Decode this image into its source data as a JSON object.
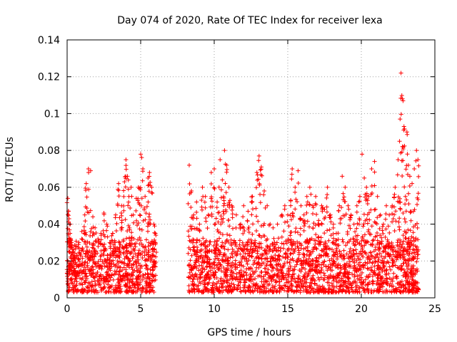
{
  "chart_data": {
    "type": "scatter",
    "title": "Day 074 of 2020, Rate Of TEC Index for receiver lexa",
    "xlabel": "GPS time / hours",
    "ylabel": "ROTI / TECUs",
    "xlim": [
      0,
      25
    ],
    "ylim": [
      0,
      0.14
    ],
    "x_ticks": [
      "0",
      "5",
      "10",
      "15",
      "20",
      "25"
    ],
    "x_tick_values": [
      0,
      5,
      10,
      15,
      20,
      25
    ],
    "y_ticks": [
      "0",
      "0.02",
      "0.04",
      "0.06",
      "0.08",
      "0.1",
      "0.12",
      "0.14"
    ],
    "y_tick_values": [
      0,
      0.02,
      0.04,
      0.06,
      0.08,
      0.1,
      0.12,
      0.14
    ],
    "grid": true,
    "marker": "plus",
    "color": "#ff0000",
    "series": [
      {
        "x": [
          0.05,
          0.1,
          0.15,
          0.2,
          0.3,
          0.4,
          0.5,
          0.6,
          0.8,
          1.0,
          1.2,
          1.3,
          1.45,
          1.6,
          1.75,
          1.9,
          2.1,
          2.3,
          2.5,
          2.7,
          2.9,
          3.1,
          3.3,
          3.5,
          3.7,
          3.9,
          4.0,
          4.1,
          4.2,
          4.35,
          4.5,
          4.7,
          4.85,
          5.0,
          5.15,
          5.3,
          5.5,
          5.6,
          5.75,
          5.9,
          6.0,
          8.3,
          8.45,
          8.6,
          8.8,
          9.0,
          9.2,
          9.4,
          9.6,
          9.8,
          10.0,
          10.2,
          10.4,
          10.55,
          10.7,
          10.85,
          11.0,
          11.2,
          11.5,
          11.8,
          12.0,
          12.3,
          12.6,
          12.9,
          13.05,
          13.2,
          13.4,
          13.6,
          13.8,
          14.0,
          14.3,
          14.6,
          14.8,
          15.0,
          15.2,
          15.3,
          15.5,
          15.7,
          15.9,
          16.1,
          16.3,
          16.5,
          16.7,
          16.9,
          17.1,
          17.3,
          17.5,
          17.7,
          17.9,
          18.1,
          18.3,
          18.5,
          18.7,
          18.9,
          19.1,
          19.3,
          19.5,
          19.7,
          19.9,
          20.05,
          20.2,
          20.35,
          20.5,
          20.7,
          20.9,
          21.1,
          21.3,
          21.5,
          21.7,
          21.9,
          22.1,
          22.3,
          22.5,
          22.6,
          22.7,
          22.8,
          22.9,
          23.0,
          23.1,
          23.2,
          23.3,
          23.45,
          23.6,
          23.75,
          23.85
        ],
        "y": [
          0.054,
          0.047,
          0.04,
          0.035,
          0.03,
          0.025,
          0.022,
          0.028,
          0.03,
          0.036,
          0.045,
          0.062,
          0.07,
          0.069,
          0.044,
          0.038,
          0.032,
          0.035,
          0.046,
          0.04,
          0.03,
          0.035,
          0.045,
          0.062,
          0.05,
          0.063,
          0.075,
          0.066,
          0.055,
          0.06,
          0.045,
          0.054,
          0.06,
          0.078,
          0.07,
          0.055,
          0.065,
          0.068,
          0.06,
          0.04,
          0.035,
          0.072,
          0.058,
          0.045,
          0.052,
          0.04,
          0.06,
          0.055,
          0.045,
          0.068,
          0.07,
          0.052,
          0.075,
          0.064,
          0.08,
          0.072,
          0.06,
          0.05,
          0.045,
          0.04,
          0.05,
          0.047,
          0.055,
          0.068,
          0.077,
          0.071,
          0.058,
          0.05,
          0.04,
          0.038,
          0.04,
          0.045,
          0.05,
          0.045,
          0.053,
          0.07,
          0.06,
          0.069,
          0.05,
          0.045,
          0.055,
          0.06,
          0.05,
          0.055,
          0.042,
          0.05,
          0.048,
          0.06,
          0.045,
          0.04,
          0.035,
          0.05,
          0.066,
          0.06,
          0.05,
          0.045,
          0.04,
          0.05,
          0.055,
          0.078,
          0.065,
          0.06,
          0.055,
          0.07,
          0.074,
          0.055,
          0.045,
          0.04,
          0.05,
          0.045,
          0.05,
          0.06,
          0.075,
          0.085,
          0.122,
          0.108,
          0.093,
          0.055,
          0.09,
          0.072,
          0.066,
          0.062,
          0.07,
          0.08,
          0.075
        ],
        "baseline_min": 0.003,
        "baseline_max": 0.025
      }
    ]
  }
}
